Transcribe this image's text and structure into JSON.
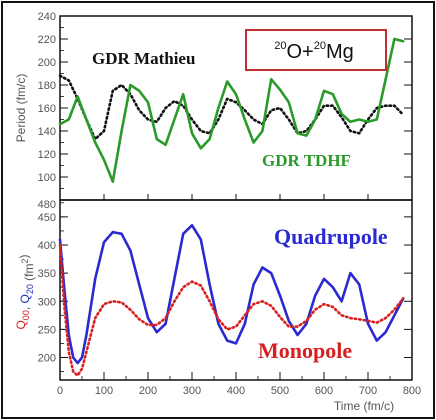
{
  "chart_data": [
    {
      "type": "line",
      "xlim": [
        0,
        800
      ],
      "ylim": [
        80,
        240
      ],
      "ylabel": "Period (fm/c)",
      "yticks": [
        100,
        120,
        140,
        160,
        180,
        200,
        220,
        240
      ],
      "grid": false,
      "title_box": {
        "prefix_a": "20",
        "text_a": "O+",
        "prefix_b": "20",
        "text_b": "Mg",
        "color": "#c03030"
      },
      "series": [
        {
          "name": "GDR Mathieu",
          "color": "#111111",
          "style": "dotted",
          "x": [
            0,
            20,
            40,
            60,
            80,
            100,
            120,
            140,
            160,
            180,
            200,
            220,
            240,
            260,
            280,
            300,
            320,
            340,
            360,
            380,
            400,
            420,
            440,
            460,
            480,
            500,
            520,
            540,
            560,
            580,
            600,
            620,
            640,
            660,
            680,
            700,
            720,
            740,
            760,
            780
          ],
          "y": [
            188,
            184,
            168,
            150,
            133,
            140,
            175,
            180,
            172,
            158,
            150,
            148,
            160,
            166,
            162,
            150,
            140,
            138,
            150,
            168,
            165,
            158,
            150,
            146,
            158,
            160,
            150,
            138,
            140,
            150,
            162,
            162,
            152,
            140,
            138,
            150,
            160,
            162,
            162,
            154
          ]
        },
        {
          "name": "GDR TDHF",
          "color": "#2a9a2a",
          "style": "solid",
          "x": [
            0,
            20,
            40,
            60,
            80,
            100,
            120,
            140,
            160,
            180,
            200,
            220,
            240,
            260,
            280,
            300,
            320,
            340,
            360,
            380,
            400,
            420,
            440,
            460,
            480,
            500,
            520,
            540,
            560,
            580,
            600,
            620,
            640,
            660,
            680,
            700,
            720,
            740,
            760,
            780
          ],
          "y": [
            146,
            150,
            170,
            150,
            130,
            115,
            96,
            140,
            180,
            175,
            165,
            133,
            128,
            150,
            172,
            138,
            125,
            133,
            160,
            183,
            172,
            150,
            130,
            140,
            185,
            176,
            165,
            138,
            136,
            150,
            175,
            172,
            155,
            148,
            150,
            148,
            150,
            185,
            220,
            218
          ]
        }
      ],
      "labels": {
        "mathieu": "GDR Mathieu",
        "tdhf": "GDR TDHF"
      }
    },
    {
      "type": "line",
      "xlim": [
        0,
        800
      ],
      "ylim": [
        160,
        480
      ],
      "xlabel": "Time (fm/c)",
      "ylabel_parts": [
        {
          "text": "Q",
          "sub": "00",
          "color": "#d02020"
        },
        {
          "text": ", ",
          "color": "#555555"
        },
        {
          "text": "Q",
          "sub": "20",
          "color": "#2030c0"
        },
        {
          "text": " (fm",
          "color": "#555555"
        },
        {
          "text": "2",
          "sup": true,
          "color": "#555555"
        },
        {
          "text": ")",
          "color": "#555555"
        }
      ],
      "xticks": [
        0,
        100,
        200,
        300,
        400,
        500,
        600,
        700,
        800
      ],
      "yticks": [
        200,
        250,
        300,
        350,
        400,
        450
      ],
      "ytick_top": "480",
      "grid": false,
      "series": [
        {
          "name": "Quadrupole",
          "color": "#2a2ad0",
          "style": "solid",
          "x": [
            0,
            10,
            20,
            30,
            40,
            50,
            60,
            80,
            100,
            120,
            140,
            160,
            180,
            200,
            220,
            240,
            260,
            280,
            300,
            320,
            340,
            360,
            380,
            400,
            420,
            440,
            460,
            480,
            500,
            520,
            540,
            560,
            580,
            600,
            620,
            640,
            660,
            680,
            700,
            720,
            740,
            760,
            780
          ],
          "y": [
            410,
            320,
            240,
            200,
            190,
            200,
            240,
            340,
            405,
            423,
            420,
            390,
            330,
            270,
            245,
            260,
            340,
            420,
            435,
            410,
            330,
            260,
            230,
            225,
            260,
            330,
            360,
            350,
            310,
            265,
            240,
            260,
            310,
            340,
            325,
            300,
            350,
            330,
            260,
            230,
            245,
            275,
            305
          ]
        },
        {
          "name": "Monopole",
          "color": "#d82020",
          "style": "dotted",
          "x": [
            0,
            10,
            20,
            30,
            40,
            50,
            60,
            80,
            100,
            120,
            140,
            160,
            180,
            200,
            220,
            240,
            260,
            280,
            300,
            320,
            340,
            360,
            380,
            400,
            420,
            440,
            460,
            480,
            500,
            520,
            540,
            560,
            580,
            600,
            620,
            640,
            660,
            680,
            700,
            720,
            740,
            760,
            780
          ],
          "y": [
            400,
            290,
            210,
            175,
            168,
            180,
            210,
            270,
            295,
            300,
            298,
            285,
            268,
            258,
            258,
            270,
            300,
            325,
            335,
            328,
            300,
            268,
            250,
            255,
            275,
            295,
            300,
            292,
            272,
            255,
            255,
            265,
            285,
            295,
            290,
            275,
            270,
            268,
            265,
            262,
            270,
            285,
            305
          ]
        }
      ],
      "labels": {
        "quadrupole": "Quadrupole",
        "monopole": "Monopole"
      }
    }
  ]
}
